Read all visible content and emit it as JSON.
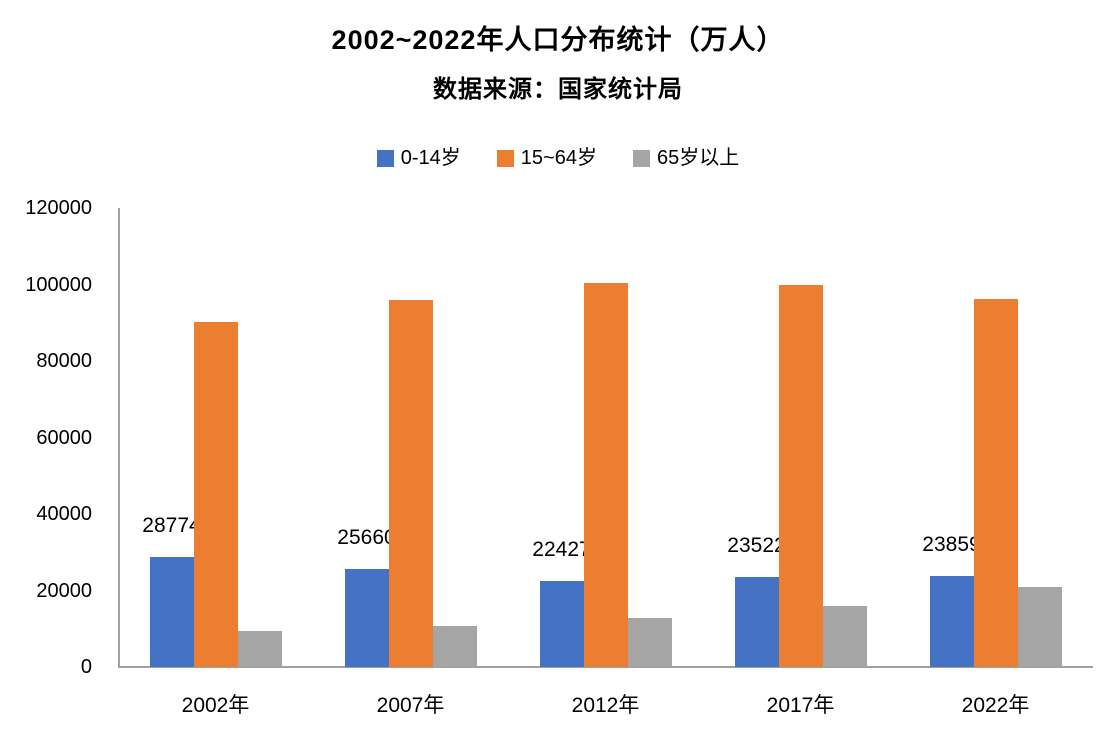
{
  "chart_data": {
    "type": "bar",
    "title": "2002~2022年人口分布统计（万人）",
    "subtitle": "数据来源：国家统计局",
    "categories": [
      "2002年",
      "2007年",
      "2012年",
      "2017年",
      "2022年"
    ],
    "series": [
      {
        "name": "0-14岁",
        "color": "#4472C4",
        "values": [
          28774,
          25660,
          22427,
          23522,
          23859
        ],
        "show_value_labels": true
      },
      {
        "name": "15~64岁",
        "color": "#ED7D31",
        "values": [
          90302,
          95833,
          100403,
          99829,
          96289
        ],
        "show_value_labels": false
      },
      {
        "name": "65岁以上",
        "color": "#A5A5A5",
        "values": [
          9377,
          10636,
          12714,
          15831,
          20978
        ],
        "show_value_labels": false
      }
    ],
    "xlabel": "",
    "ylabel": "",
    "ylim": [
      0,
      120000
    ],
    "ytick_step": 20000,
    "ytick_labels": [
      "0",
      "20000",
      "40000",
      "60000",
      "80000",
      "100000",
      "120000"
    ],
    "grid": false,
    "legend_position": "top",
    "colors": {
      "axis_line": "#a0a0a0",
      "text": "#000000",
      "background": "#ffffff"
    }
  }
}
